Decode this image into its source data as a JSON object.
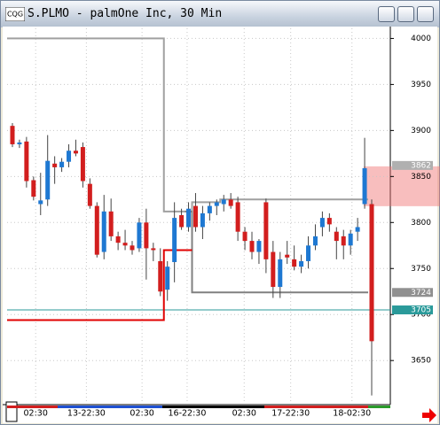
{
  "window_title": "S.PLMO - palmOne Inc, 30 Min",
  "chart_data": {
    "type": "candlestick",
    "up_color": "#1e78d2",
    "down_color": "#d21e1e",
    "ohlc": [
      [
        3905,
        3908,
        3882,
        3885
      ],
      [
        3885,
        3890,
        3881,
        3887
      ],
      [
        3888,
        3893,
        3838,
        3845
      ],
      [
        3846,
        3850,
        3824,
        3828
      ],
      [
        3820,
        3854,
        3808,
        3824
      ],
      [
        3825,
        3895,
        3818,
        3867
      ],
      [
        3864,
        3872,
        3842,
        3860
      ],
      [
        3860,
        3870,
        3855,
        3866
      ],
      [
        3866,
        3885,
        3860,
        3878
      ],
      [
        3878,
        3890,
        3872,
        3875
      ],
      [
        3882,
        3887,
        3838,
        3845
      ],
      [
        3842,
        3848,
        3815,
        3818
      ],
      [
        3818,
        3822,
        3762,
        3765
      ],
      [
        3768,
        3830,
        3760,
        3812
      ],
      [
        3812,
        3826,
        3780,
        3785
      ],
      [
        3785,
        3790,
        3770,
        3778
      ],
      [
        3778,
        3792,
        3770,
        3775
      ],
      [
        3775,
        3780,
        3765,
        3770
      ],
      [
        3772,
        3805,
        3768,
        3800
      ],
      [
        3800,
        3815,
        3738,
        3772
      ],
      [
        3772,
        3778,
        3758,
        3770
      ],
      [
        3758,
        3772,
        3720,
        3725
      ],
      [
        3727,
        3758,
        3715,
        3752
      ],
      [
        3757,
        3822,
        3735,
        3805
      ],
      [
        3808,
        3815,
        3792,
        3795
      ],
      [
        3795,
        3822,
        3790,
        3815
      ],
      [
        3818,
        3832,
        3790,
        3795
      ],
      [
        3795,
        3818,
        3782,
        3810
      ],
      [
        3810,
        3822,
        3802,
        3818
      ],
      [
        3818,
        3825,
        3808,
        3822
      ],
      [
        3820,
        3830,
        3812,
        3825
      ],
      [
        3825,
        3832,
        3815,
        3818
      ],
      [
        3822,
        3828,
        3780,
        3790
      ],
      [
        3790,
        3795,
        3770,
        3780
      ],
      [
        3780,
        3790,
        3760,
        3768
      ],
      [
        3768,
        3782,
        3755,
        3780
      ],
      [
        3822,
        3826,
        3745,
        3760
      ],
      [
        3768,
        3780,
        3718,
        3730
      ],
      [
        3730,
        3768,
        3718,
        3760
      ],
      [
        3765,
        3780,
        3755,
        3762
      ],
      [
        3760,
        3775,
        3748,
        3752
      ],
      [
        3752,
        3765,
        3745,
        3758
      ],
      [
        3758,
        3785,
        3750,
        3775
      ],
      [
        3775,
        3798,
        3770,
        3785
      ],
      [
        3795,
        3812,
        3785,
        3805
      ],
      [
        3805,
        3810,
        3790,
        3798
      ],
      [
        3790,
        3795,
        3760,
        3780
      ],
      [
        3785,
        3792,
        3760,
        3775
      ],
      [
        3775,
        3792,
        3765,
        3788
      ],
      [
        3790,
        3805,
        3780,
        3795
      ],
      [
        3820,
        3892,
        3815,
        3859
      ],
      [
        3820,
        3825,
        3612,
        3671
      ]
    ],
    "overlays": [
      {
        "color": "#a0a0a0",
        "values": [
          4000,
          4000,
          4000,
          4000,
          4000,
          4000,
          4000,
          4000,
          4000,
          4000,
          4000,
          4000,
          4000,
          4000,
          4000,
          4000,
          4000,
          4000,
          4000,
          4000,
          4000,
          4000,
          3812,
          3812,
          3812,
          3812,
          3822,
          3822,
          3822,
          3822,
          3825,
          3825,
          3825,
          3825,
          3825,
          3825,
          3825,
          3825,
          3825,
          3825,
          3825,
          3825,
          3825,
          3825,
          3825,
          3825,
          3825,
          3825,
          3825,
          3825,
          3825,
          null
        ]
      },
      {
        "color": "#808080",
        "values": [
          null,
          null,
          null,
          null,
          null,
          null,
          null,
          null,
          null,
          null,
          null,
          null,
          null,
          null,
          null,
          null,
          null,
          null,
          null,
          null,
          null,
          null,
          null,
          null,
          null,
          3812,
          3724,
          3724,
          3724,
          3724,
          3724,
          3724,
          3724,
          3724,
          3724,
          3724,
          3724,
          3724,
          3724,
          3724,
          3724,
          3724,
          3724,
          3724,
          3724,
          3724,
          3724,
          3724,
          3724,
          3724,
          3724,
          null
        ]
      },
      {
        "color": "#e00000",
        "values": [
          3694,
          3694,
          3694,
          3694,
          3694,
          3694,
          3694,
          3694,
          3694,
          3694,
          3694,
          3694,
          3694,
          3694,
          3694,
          3694,
          3694,
          3694,
          3694,
          3694,
          3694,
          3694,
          3770,
          3770,
          3770,
          3770,
          null,
          null,
          null,
          null,
          null,
          null,
          null,
          null,
          null,
          null,
          null,
          null,
          null,
          null,
          null,
          null,
          null,
          null,
          null,
          null,
          null,
          null,
          null,
          null,
          null,
          null
        ]
      }
    ],
    "reference_line": {
      "value": 3705,
      "color": "#2a9a9a"
    },
    "ylim": [
      3604,
      4011
    ],
    "yticks": [
      4000,
      3950,
      3900,
      3850,
      3800,
      3750,
      3700,
      3650
    ],
    "xticks": [
      {
        "value": 3.3,
        "label": "02:30"
      },
      {
        "value": 10.5,
        "label": "13-22:30"
      },
      {
        "value": 18.4,
        "label": "02:30"
      },
      {
        "value": 24.8,
        "label": "16-22:30"
      },
      {
        "value": 32.9,
        "label": "02:30"
      },
      {
        "value": 39.5,
        "label": "17-22:30"
      },
      {
        "value": 48.2,
        "label": "18-02:30"
      }
    ],
    "price_labels": [
      {
        "value": 3862,
        "color": "#b0b0b0"
      },
      {
        "value": 3724,
        "color": "#909090"
      },
      {
        "value": 3705,
        "color": "#2a9a9a"
      }
    ],
    "grid": true
  }
}
